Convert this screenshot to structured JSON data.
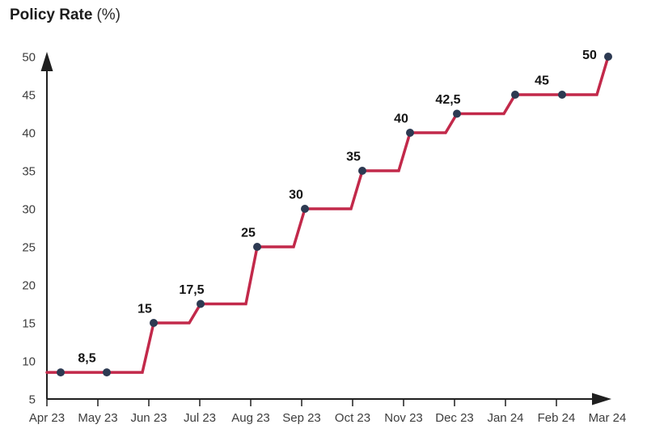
{
  "title": {
    "main": "Policy Rate",
    "unit": "(%)"
  },
  "chart_data": {
    "type": "line",
    "subtype": "step",
    "title": "Policy Rate (%)",
    "xlabel": "",
    "ylabel": "Policy Rate (%)",
    "categories": [
      "Apr 23",
      "May 23",
      "Jun 23",
      "Jul 23",
      "Aug 23",
      "Sep 23",
      "Oct 23",
      "Nov 23",
      "Dec 23",
      "Jan 24",
      "Feb 24",
      "Mar 24"
    ],
    "values": [
      8.5,
      8.5,
      15,
      17.5,
      25,
      30,
      35,
      40,
      42.5,
      45,
      45,
      50
    ],
    "point_labels": [
      "8,5",
      "8,5",
      "15",
      "17,5",
      "25",
      "30",
      "35",
      "40",
      "42,5",
      "45",
      "45",
      "50"
    ],
    "decimal_separator": ",",
    "y_ticks": [
      5,
      10,
      15,
      20,
      25,
      30,
      35,
      40,
      45,
      50
    ],
    "ylim": [
      5,
      50
    ],
    "grid": false,
    "legend": false,
    "axis_arrows": true,
    "colors": {
      "line": "#c2294a",
      "point": "#2d3a52",
      "axis": "#1f1f1f",
      "tick_label": "#3d3d3d",
      "value_label": "#141414"
    }
  }
}
